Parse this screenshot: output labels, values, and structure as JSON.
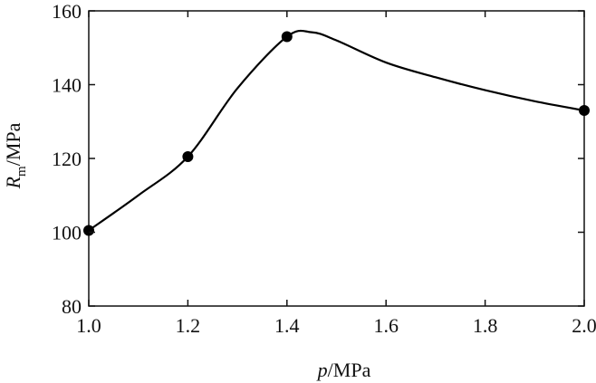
{
  "chart_data": {
    "type": "line",
    "x": [
      1.0,
      1.2,
      1.4,
      2.0
    ],
    "y": [
      100.5,
      120.5,
      153,
      133
    ],
    "curve_x": [
      1.0,
      1.1,
      1.2,
      1.3,
      1.4,
      1.45,
      1.5,
      1.6,
      1.7,
      1.8,
      1.9,
      2.0
    ],
    "curve_y": [
      100.5,
      110,
      120.5,
      139,
      153,
      154.2,
      152,
      146,
      142,
      138.5,
      135.5,
      133
    ],
    "xlim": [
      1.0,
      2.0
    ],
    "ylim": [
      80,
      160
    ],
    "xticks": [
      1.0,
      1.2,
      1.4,
      1.6,
      1.8,
      2.0
    ],
    "xtick_labels": [
      "1.0",
      "1.2",
      "1.4",
      "1.6",
      "1.8",
      "2.0"
    ],
    "yticks": [
      80,
      100,
      120,
      140,
      160
    ],
    "ytick_labels": [
      "80",
      "100",
      "120",
      "140",
      "160"
    ],
    "xlabel": {
      "var": "p",
      "unit": "/MPa"
    },
    "ylabel": {
      "var": "R",
      "sub": "m",
      "unit": "/MPa"
    },
    "grid": false,
    "colors": {
      "line": "#000000",
      "marker": "#000000",
      "axis": "#111111"
    }
  }
}
